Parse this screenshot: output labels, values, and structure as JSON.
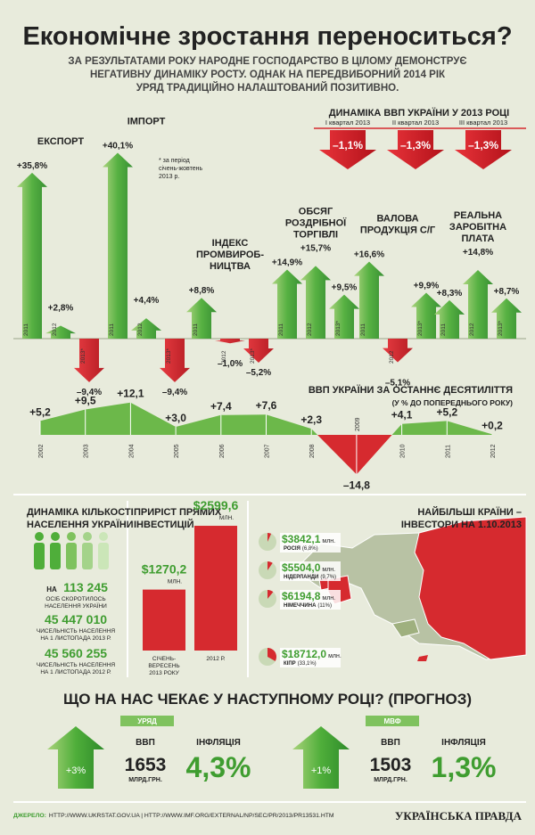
{
  "header": {
    "title": "Економічне зростання переноситься?",
    "subtitle_lines": [
      "ЗА РЕЗУЛЬТАТАМИ РОКУ НАРОДНЕ ГОСПОДАРСТВО В ЦІЛОМУ ДЕМОНСТРУЄ",
      "НЕГАТИВНУ ДИНАМІКУ РОСТУ. ОДНАК НА ПЕРЕДВИБОРНИЙ 2014 РІК",
      "УРЯД ТРАДИЦІЙНО НАЛАШТОВАНИЙ ПОЗИТИВНО."
    ]
  },
  "indicators": [
    {
      "name_lines": [
        "ЕКСПОРТ"
      ],
      "categories": [
        "2011",
        "2012",
        "2013*"
      ],
      "values": [
        35.8,
        2.8,
        -9.4
      ],
      "value_labels": [
        "+35,8%",
        "+2,8%",
        "–9,4%"
      ]
    },
    {
      "name_lines": [
        "ІМПОРТ"
      ],
      "categories": [
        "2011",
        "2012",
        "2013*"
      ],
      "values": [
        40.1,
        4.4,
        -9.4
      ],
      "value_labels": [
        "+40,1%",
        "+4,4%",
        "–9,4%"
      ]
    },
    {
      "name_lines": [
        "ІНДЕКС",
        "ПРОМВИРОБ-",
        "НИЦТВА"
      ],
      "categories": [
        "2011",
        "2012",
        "2013*"
      ],
      "values": [
        8.8,
        -1.0,
        -5.2
      ],
      "value_labels": [
        "+8,8%",
        "–1,0%",
        "–5,2%"
      ]
    },
    {
      "name_lines": [
        "ОБСЯГ",
        "РОЗДРІБНОЇ",
        "ТОРГІВЛІ"
      ],
      "categories": [
        "2011",
        "2012",
        "2013*"
      ],
      "values": [
        14.9,
        15.7,
        9.5
      ],
      "value_labels": [
        "+14,9%",
        "+15,7%",
        "+9,5%"
      ]
    },
    {
      "name_lines": [
        "ВАЛОВА",
        "ПРОДУКЦІЯ С/Г"
      ],
      "categories": [
        "2011",
        "2012",
        "2013*"
      ],
      "values": [
        16.6,
        -5.1,
        9.9
      ],
      "value_labels": [
        "+16,6%",
        "–5,1%",
        "+9,9%"
      ]
    },
    {
      "name_lines": [
        "РЕАЛЬНА",
        "ЗАРОБІТНА",
        "ПЛАТА"
      ],
      "categories": [
        "2011",
        "2012",
        "2013*"
      ],
      "values": [
        8.3,
        14.8,
        8.7
      ],
      "value_labels": [
        "+8,3%",
        "+14,8%",
        "+8,7%"
      ]
    }
  ],
  "footnote_lines": [
    "* за період",
    "січень-жовтень",
    "2013 р."
  ],
  "gdp_quarters": {
    "title": "ДИНАМІКА ВВП УКРАЇНИ У 2013 РОЦІ",
    "labels": [
      "I квартал 2013",
      "II квартал 2013",
      "III квартал 2013"
    ],
    "value_labels": [
      "–1,1%",
      "–1,3%",
      "–1,3%"
    ]
  },
  "gdp_decade": {
    "title": "ВВП УКРАЇНИ ЗА ОСТАННЄ ДЕСЯТИЛІТТЯ",
    "subtitle": "(У % ДО ПОПЕРЕДНЬОГО РОКУ)",
    "years": [
      "2002",
      "2003",
      "2004",
      "2005",
      "2006",
      "2007",
      "2008",
      "2009",
      "2010",
      "2011",
      "2012"
    ],
    "values": [
      5.2,
      9.5,
      12.1,
      3.0,
      7.4,
      7.6,
      2.3,
      -14.8,
      4.1,
      5.2,
      0.2
    ],
    "value_labels": [
      "+5,2",
      "+9,5",
      "+12,1",
      "+3,0",
      "+7,4",
      "+7,6",
      "+2,3",
      "–14,8",
      "+4,1",
      "+5,2",
      "+0,2"
    ]
  },
  "population": {
    "title_lines": [
      "ДИНАМІКА КІЛЬКОСТІ",
      "НАСЕЛЕННЯ УКРАЇНИ"
    ],
    "decline_prefix": "НА",
    "decline_value": "113 245",
    "decline_lines": [
      "ОСІБ СКОРОТИЛОСЬ",
      "НАСЕЛЕННЯ УКРАЇНИ"
    ],
    "counts": [
      {
        "value": "45 447 010",
        "lines": [
          "ЧИСЕЛЬНІСТЬ НАСЕЛЕННЯ",
          "НА 1 ЛИСТОПАДА 2013 Р."
        ]
      },
      {
        "value": "45 560 255",
        "lines": [
          "ЧИСЕЛЬНІСТЬ НАСЕЛЕННЯ",
          "НА 1 ЛИСТОПАДА 2012 Р."
        ]
      }
    ]
  },
  "investments": {
    "title_lines": [
      "ПРИРІСТ ПРЯМИХ",
      "ІНВЕСТИЦІЙ"
    ],
    "values": [
      1270.2,
      2599.6
    ],
    "value_labels": [
      "$1270,2",
      "$2599,6"
    ],
    "unit": "МЛН.",
    "category_lines": [
      [
        "СІЧЕНЬ-",
        "ВЕРЕСЕНЬ",
        "2013 РОКУ"
      ],
      [
        "2012 Р."
      ]
    ]
  },
  "investors": {
    "title_lines": [
      "НАЙБІЛЬШІ КРАЇНИ –",
      "ІНВЕСТОРИ НА 1.10.2013"
    ],
    "unit": "млн.",
    "items": [
      {
        "amount": "$3842,1",
        "country": "РОСІЯ",
        "share": 6.8,
        "share_label": "(6,8%)"
      },
      {
        "amount": "$5504,0",
        "country": "НІДЕРЛАНДИ",
        "share": 9.7,
        "share_label": "(9,7%)"
      },
      {
        "amount": "$6194,8",
        "country": "НІМЕЧЧИНА",
        "share": 11,
        "share_label": "(11%)"
      },
      {
        "amount": "$18712,0",
        "country": "КІПР",
        "share": 33.1,
        "share_label": "(33,1%)"
      }
    ]
  },
  "forecast": {
    "title": "ЩО НА НАС ЧЕКАЄ У НАСТУПНОМУ РОЦІ? (ПРОГНОЗ)",
    "gdp_header": "ВВП",
    "gdp_unit": "МЛРД.ГРН.",
    "inflation_header": "ІНФЛЯЦІЯ",
    "groups": [
      {
        "name": "УРЯД",
        "growth": "+3%",
        "gdp": "1653",
        "inflation": "4,3%"
      },
      {
        "name": "МВФ",
        "growth": "+1%",
        "gdp": "1503",
        "inflation": "1,3%"
      }
    ]
  },
  "footer": {
    "source_label": "ДЖЕРЕЛО:",
    "source": "HTTP://WWW.UKRSTAT.GOV.UA | HTTP://WWW.IMF.ORG/EXTERNAL/NP/SEC/PR/2013/PR13531.HTM",
    "brand": "УКРАЇНСЬКА ПРАВДА"
  }
}
